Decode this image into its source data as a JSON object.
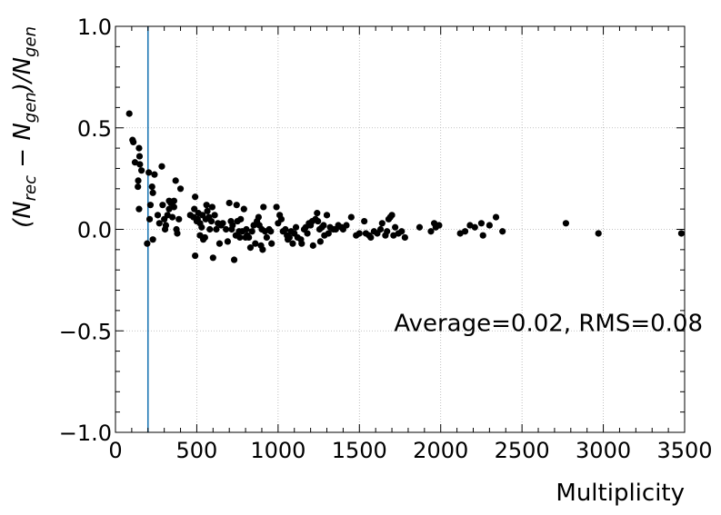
{
  "chart_data": {
    "type": "scatter",
    "title": "",
    "xlabel": "Multiplicity",
    "ylabel_parts": [
      "(N",
      "rec",
      " − N",
      "gen",
      ")/N",
      "gen"
    ],
    "xlim": [
      0,
      3500
    ],
    "ylim": [
      -1.0,
      1.0
    ],
    "xticks": [
      0,
      500,
      1000,
      1500,
      2000,
      2500,
      3000,
      3500
    ],
    "xtick_labels": [
      "0",
      "500",
      "1000",
      "1500",
      "2000",
      "2500",
      "3000",
      "3500"
    ],
    "yticks": [
      -1.0,
      -0.5,
      0.0,
      0.5,
      1.0
    ],
    "ytick_labels": [
      "−1.0",
      "−0.5",
      "0.0",
      "0.5",
      "1.0"
    ],
    "grid": true,
    "annotation": "Average=0.02, RMS=0.08",
    "vline_x": 200,
    "vline_color": "#1f77b4",
    "marker_color": "#000000",
    "points": [
      [
        85,
        0.57
      ],
      [
        105,
        0.44
      ],
      [
        110,
        0.43
      ],
      [
        120,
        0.33
      ],
      [
        145,
        0.4
      ],
      [
        148,
        0.36
      ],
      [
        150,
        0.32
      ],
      [
        138,
        0.21
      ],
      [
        140,
        0.24
      ],
      [
        160,
        0.29
      ],
      [
        145,
        0.1
      ],
      [
        195,
        -0.07
      ],
      [
        205,
        0.28
      ],
      [
        210,
        0.05
      ],
      [
        215,
        0.12
      ],
      [
        225,
        0.21
      ],
      [
        230,
        0.18
      ],
      [
        240,
        0.27
      ],
      [
        230,
        -0.05
      ],
      [
        260,
        0.07
      ],
      [
        270,
        0.03
      ],
      [
        285,
        0.31
      ],
      [
        290,
        0.12
      ],
      [
        300,
        0.05
      ],
      [
        305,
        0.0
      ],
      [
        310,
        0.02
      ],
      [
        320,
        0.07
      ],
      [
        330,
        0.1
      ],
      [
        330,
        0.14
      ],
      [
        340,
        0.13
      ],
      [
        350,
        0.06
      ],
      [
        360,
        0.11
      ],
      [
        360,
        0.14
      ],
      [
        370,
        0.24
      ],
      [
        375,
        0.0
      ],
      [
        380,
        -0.02
      ],
      [
        390,
        0.05
      ],
      [
        400,
        0.2
      ],
      [
        460,
        0.07
      ],
      [
        480,
        0.06
      ],
      [
        485,
        0.1
      ],
      [
        490,
        0.16
      ],
      [
        490,
        -0.13
      ],
      [
        500,
        0.04
      ],
      [
        505,
        0.05
      ],
      [
        510,
        0.08
      ],
      [
        520,
        0.03
      ],
      [
        520,
        -0.03
      ],
      [
        530,
        0.01
      ],
      [
        535,
        0.07
      ],
      [
        540,
        -0.05
      ],
      [
        550,
        -0.04
      ],
      [
        555,
        0.05
      ],
      [
        560,
        0.12
      ],
      [
        565,
        0.09
      ],
      [
        575,
        0.06
      ],
      [
        580,
        0.0
      ],
      [
        590,
        0.04
      ],
      [
        595,
        0.11
      ],
      [
        600,
        -0.14
      ],
      [
        610,
        0.07
      ],
      [
        620,
        0.0
      ],
      [
        630,
        0.03
      ],
      [
        640,
        -0.07
      ],
      [
        650,
        0.02
      ],
      [
        660,
        0.03
      ],
      [
        680,
        0.0
      ],
      [
        690,
        -0.06
      ],
      [
        700,
        0.13
      ],
      [
        710,
        0.04
      ],
      [
        715,
        0.0
      ],
      [
        720,
        0.02
      ],
      [
        730,
        -0.15
      ],
      [
        740,
        -0.03
      ],
      [
        745,
        0.12
      ],
      [
        750,
        0.04
      ],
      [
        760,
        -0.01
      ],
      [
        765,
        -0.04
      ],
      [
        770,
        0.05
      ],
      [
        780,
        -0.01
      ],
      [
        790,
        0.1
      ],
      [
        800,
        -0.04
      ],
      [
        805,
        0.0
      ],
      [
        810,
        -0.03
      ],
      [
        820,
        -0.04
      ],
      [
        830,
        -0.09
      ],
      [
        840,
        -0.01
      ],
      [
        850,
        0.02
      ],
      [
        860,
        -0.07
      ],
      [
        870,
        0.04
      ],
      [
        880,
        0.06
      ],
      [
        885,
        0.02
      ],
      [
        895,
        -0.08
      ],
      [
        900,
        0.0
      ],
      [
        905,
        -0.1
      ],
      [
        910,
        0.11
      ],
      [
        920,
        -0.01
      ],
      [
        930,
        -0.04
      ],
      [
        945,
        0.0
      ],
      [
        955,
        -0.01
      ],
      [
        960,
        -0.07
      ],
      [
        990,
        0.11
      ],
      [
        1000,
        0.03
      ],
      [
        1010,
        0.07
      ],
      [
        1020,
        0.05
      ],
      [
        1030,
        -0.01
      ],
      [
        1045,
        0.0
      ],
      [
        1055,
        -0.03
      ],
      [
        1060,
        -0.05
      ],
      [
        1070,
        -0.04
      ],
      [
        1080,
        -0.01
      ],
      [
        1090,
        -0.07
      ],
      [
        1100,
        -0.02
      ],
      [
        1110,
        0.01
      ],
      [
        1120,
        -0.04
      ],
      [
        1140,
        -0.05
      ],
      [
        1145,
        -0.07
      ],
      [
        1160,
        0.0
      ],
      [
        1170,
        0.01
      ],
      [
        1180,
        -0.02
      ],
      [
        1190,
        0.03
      ],
      [
        1200,
        0.02
      ],
      [
        1210,
        0.04
      ],
      [
        1215,
        -0.08
      ],
      [
        1230,
        0.05
      ],
      [
        1240,
        0.08
      ],
      [
        1245,
        0.04
      ],
      [
        1255,
        0.0
      ],
      [
        1260,
        -0.06
      ],
      [
        1270,
        0.01
      ],
      [
        1280,
        0.02
      ],
      [
        1285,
        -0.03
      ],
      [
        1300,
        0.07
      ],
      [
        1310,
        -0.02
      ],
      [
        1320,
        0.01
      ],
      [
        1340,
        0.0
      ],
      [
        1355,
        0.0
      ],
      [
        1370,
        0.02
      ],
      [
        1390,
        0.01
      ],
      [
        1400,
        0.0
      ],
      [
        1420,
        0.02
      ],
      [
        1450,
        0.06
      ],
      [
        1480,
        -0.03
      ],
      [
        1500,
        -0.02
      ],
      [
        1530,
        0.04
      ],
      [
        1540,
        -0.02
      ],
      [
        1560,
        -0.03
      ],
      [
        1570,
        -0.04
      ],
      [
        1590,
        -0.01
      ],
      [
        1610,
        -0.02
      ],
      [
        1630,
        0.0
      ],
      [
        1640,
        0.03
      ],
      [
        1660,
        -0.03
      ],
      [
        1670,
        -0.01
      ],
      [
        1680,
        0.05
      ],
      [
        1690,
        0.06
      ],
      [
        1700,
        0.07
      ],
      [
        1710,
        -0.03
      ],
      [
        1720,
        0.01
      ],
      [
        1740,
        -0.02
      ],
      [
        1760,
        -0.01
      ],
      [
        1780,
        -0.04
      ],
      [
        1870,
        0.01
      ],
      [
        1940,
        -0.01
      ],
      [
        1960,
        0.03
      ],
      [
        1970,
        0.01
      ],
      [
        1990,
        0.02
      ],
      [
        2120,
        -0.02
      ],
      [
        2150,
        -0.01
      ],
      [
        2180,
        0.02
      ],
      [
        2210,
        0.01
      ],
      [
        2250,
        0.03
      ],
      [
        2260,
        -0.03
      ],
      [
        2300,
        0.02
      ],
      [
        2340,
        0.06
      ],
      [
        2380,
        -0.01
      ],
      [
        2770,
        0.03
      ],
      [
        2970,
        -0.02
      ],
      [
        3480,
        -0.02
      ]
    ]
  }
}
